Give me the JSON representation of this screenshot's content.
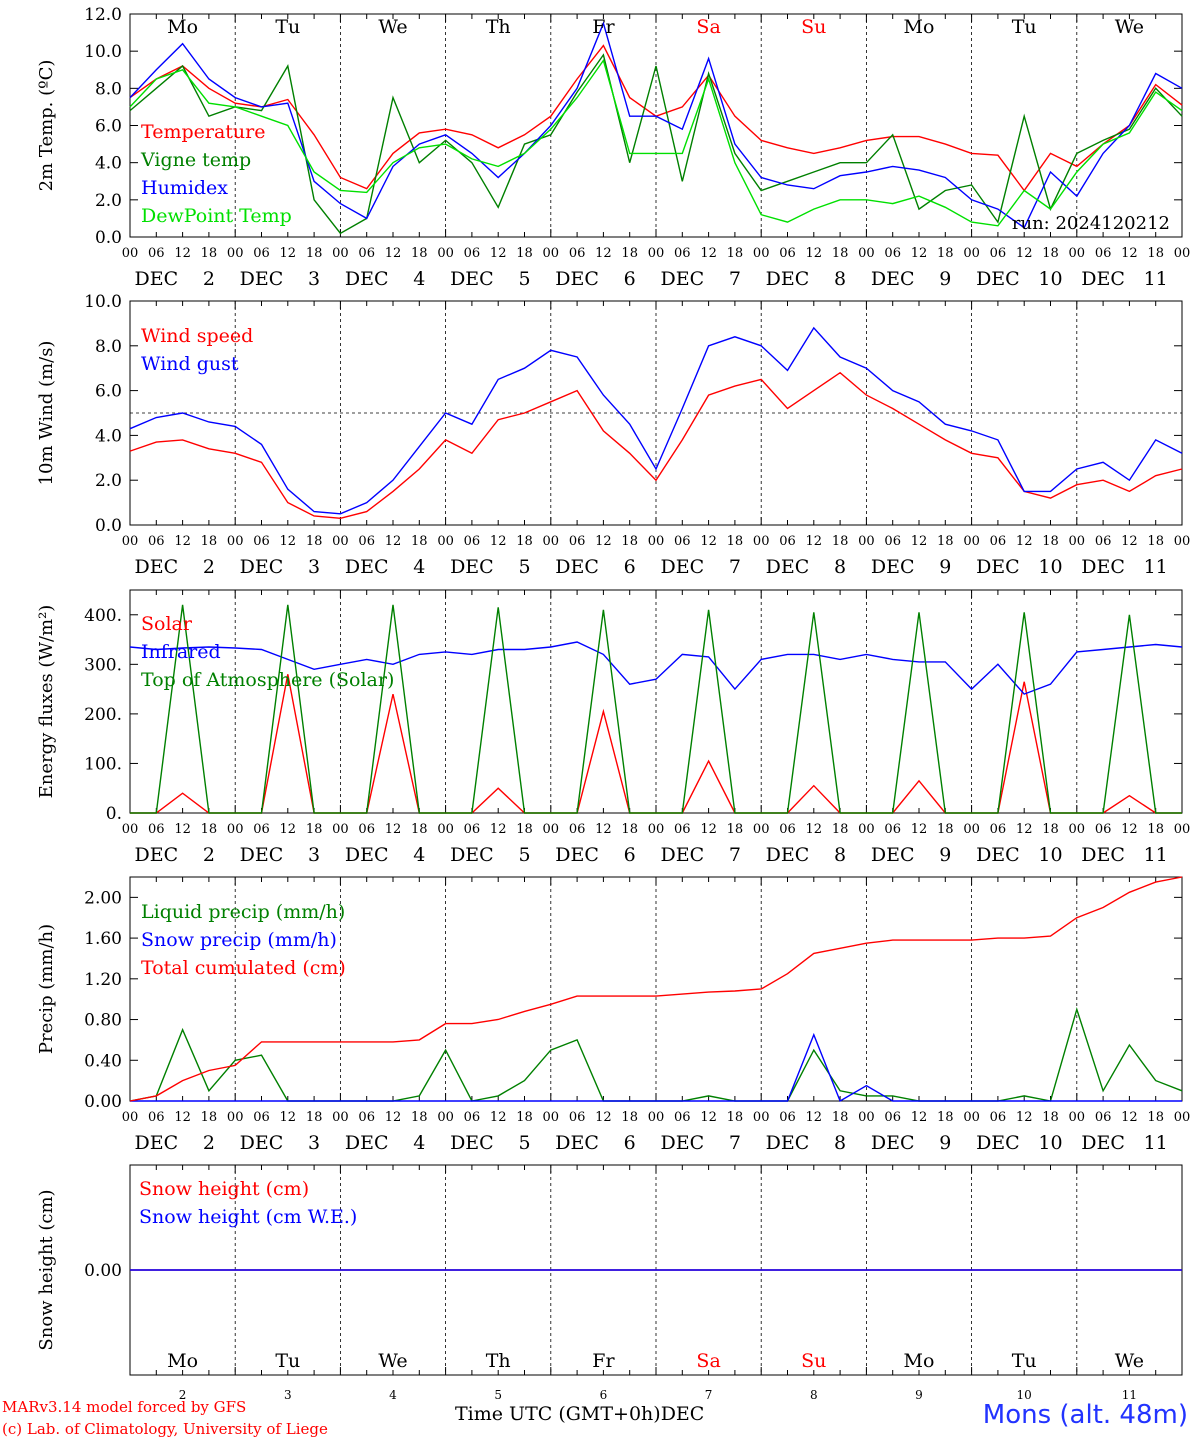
{
  "colors": {
    "red": "#ff0000",
    "green": "#008000",
    "blue": "#0000ff",
    "lightgreen": "#00e000",
    "black": "#000000"
  },
  "footer": {
    "model": "MARv3.14 model forced by GFS",
    "lab": "(c) Lab. of Climatology, University of Liege",
    "time_label": "Time UTC (GMT+0h)",
    "month": "DEC",
    "station": "Mons (alt. 48m)"
  },
  "hour_ticks": [
    "00",
    "06",
    "12",
    "18"
  ],
  "day_ticks": [
    "2",
    "3",
    "4",
    "5",
    "6",
    "7",
    "8",
    "9",
    "10",
    "11"
  ],
  "day_names": [
    {
      "label": "Mo",
      "weekend": false
    },
    {
      "label": "Tu",
      "weekend": false
    },
    {
      "label": "We",
      "weekend": false
    },
    {
      "label": "Th",
      "weekend": false
    },
    {
      "label": "Fr",
      "weekend": false
    },
    {
      "label": "Sa",
      "weekend": true
    },
    {
      "label": "Su",
      "weekend": true
    },
    {
      "label": "Mo",
      "weekend": false
    },
    {
      "label": "Tu",
      "weekend": false
    },
    {
      "label": "We",
      "weekend": false
    }
  ],
  "chart_data": [
    {
      "type": "line",
      "ylabel": "2m Temp. (ºC)",
      "ylim": [
        0,
        12
      ],
      "yticks": [
        "0.0",
        "2.0",
        "4.0",
        "6.0",
        "8.0",
        "10.0",
        "12.0"
      ],
      "annotation": "run: 2024120212",
      "x_hours": [
        0,
        6,
        12,
        18,
        24,
        30,
        36,
        42,
        48,
        54,
        60,
        66,
        72,
        78,
        84,
        90,
        96,
        102,
        108,
        114,
        120,
        126,
        132,
        138,
        144,
        150,
        156,
        162,
        168,
        174,
        180,
        186,
        192,
        198,
        204,
        210,
        216,
        222,
        228,
        234,
        240
      ],
      "series": [
        {
          "name": "Temperature",
          "color": "red",
          "values": [
            7.5,
            8.5,
            9.2,
            8.0,
            7.2,
            7.0,
            7.4,
            5.5,
            3.2,
            2.6,
            4.5,
            5.6,
            5.8,
            5.5,
            4.8,
            5.5,
            6.5,
            8.5,
            10.3,
            7.5,
            6.5,
            7.0,
            8.7,
            6.5,
            5.2,
            4.8,
            4.5,
            4.8,
            5.2,
            5.4,
            5.4,
            5.0,
            4.5,
            4.4,
            2.5,
            4.5,
            3.8,
            5.0,
            6.0,
            8.2,
            7.1
          ]
        },
        {
          "name": "Vigne temp",
          "color": "green",
          "values": [
            6.8,
            8.0,
            9.2,
            6.5,
            7.0,
            6.8,
            9.2,
            2.0,
            0.2,
            1.0,
            7.5,
            4.0,
            5.2,
            4.0,
            1.6,
            5.0,
            5.5,
            7.8,
            9.8,
            4.0,
            9.2,
            3.0,
            8.8,
            4.5,
            2.5,
            3.0,
            3.5,
            4.0,
            4.0,
            5.5,
            1.5,
            2.5,
            2.8,
            0.8,
            6.5,
            1.5,
            4.5,
            5.2,
            5.8,
            8.0,
            6.5
          ]
        },
        {
          "name": "Humidex",
          "color": "blue",
          "values": [
            7.5,
            9.0,
            10.4,
            8.5,
            7.5,
            7.0,
            7.2,
            3.0,
            1.8,
            1.0,
            3.8,
            5.0,
            5.5,
            4.5,
            3.2,
            4.5,
            6.0,
            8.0,
            11.5,
            6.5,
            6.5,
            5.8,
            9.6,
            5.0,
            3.2,
            2.8,
            2.6,
            3.3,
            3.5,
            3.8,
            3.6,
            3.2,
            2.0,
            1.5,
            0.5,
            3.5,
            2.2,
            4.5,
            6.0,
            8.8,
            8.0
          ]
        },
        {
          "name": "DewPoint Temp",
          "color": "lightgreen",
          "values": [
            7.0,
            8.5,
            9.0,
            7.2,
            7.0,
            6.5,
            6.0,
            3.5,
            2.5,
            2.4,
            4.0,
            4.8,
            5.0,
            4.2,
            3.8,
            4.5,
            5.8,
            7.5,
            9.5,
            4.5,
            4.5,
            4.5,
            8.5,
            4.0,
            1.2,
            0.8,
            1.5,
            2.0,
            2.0,
            1.8,
            2.2,
            1.6,
            0.8,
            0.6,
            2.5,
            1.5,
            3.5,
            5.0,
            5.6,
            7.8,
            6.8
          ]
        }
      ]
    },
    {
      "type": "line",
      "ylabel": "10m Wind (m/s)",
      "ylim": [
        0,
        10
      ],
      "yticks": [
        "0.0",
        "2.0",
        "4.0",
        "6.0",
        "8.0",
        "10.0"
      ],
      "reference_line": 5,
      "x_hours": [
        0,
        6,
        12,
        18,
        24,
        30,
        36,
        42,
        48,
        54,
        60,
        66,
        72,
        78,
        84,
        90,
        96,
        102,
        108,
        114,
        120,
        126,
        132,
        138,
        144,
        150,
        156,
        162,
        168,
        174,
        180,
        186,
        192,
        198,
        204,
        210,
        216,
        222,
        228,
        234,
        240
      ],
      "series": [
        {
          "name": "Wind speed",
          "color": "red",
          "values": [
            3.3,
            3.7,
            3.8,
            3.4,
            3.2,
            2.8,
            1.0,
            0.4,
            0.3,
            0.6,
            1.5,
            2.5,
            3.8,
            3.2,
            4.7,
            5.0,
            5.5,
            6.0,
            4.2,
            3.2,
            2.0,
            3.8,
            5.8,
            6.2,
            6.5,
            5.2,
            6.0,
            6.8,
            5.8,
            5.2,
            4.5,
            3.8,
            3.2,
            3.0,
            1.5,
            1.2,
            1.8,
            2.0,
            1.5,
            2.2,
            2.5
          ]
        },
        {
          "name": "Wind gust",
          "color": "blue",
          "values": [
            4.3,
            4.8,
            5.0,
            4.6,
            4.4,
            3.6,
            1.6,
            0.6,
            0.5,
            1.0,
            2.0,
            3.5,
            5.0,
            4.5,
            6.5,
            7.0,
            7.8,
            7.5,
            5.8,
            4.5,
            2.5,
            5.2,
            8.0,
            8.4,
            8.0,
            6.9,
            8.8,
            7.5,
            7.0,
            6.0,
            5.5,
            4.5,
            4.2,
            3.8,
            1.5,
            1.5,
            2.5,
            2.8,
            2.0,
            3.8,
            3.2
          ]
        }
      ]
    },
    {
      "type": "line",
      "ylabel": "Energy fluxes (W/m²)",
      "ylim": [
        0,
        450
      ],
      "yticks": [
        "0.",
        "100.",
        "200.",
        "300.",
        "400."
      ],
      "x_hours": [
        0,
        6,
        12,
        18,
        24,
        30,
        36,
        42,
        48,
        54,
        60,
        66,
        72,
        78,
        84,
        90,
        96,
        102,
        108,
        114,
        120,
        126,
        132,
        138,
        144,
        150,
        156,
        162,
        168,
        174,
        180,
        186,
        192,
        198,
        204,
        210,
        216,
        222,
        228,
        234,
        240
      ],
      "series": [
        {
          "name": "Solar",
          "color": "red",
          "values": [
            0,
            0,
            40,
            0,
            0,
            0,
            280,
            0,
            0,
            0,
            240,
            0,
            0,
            0,
            50,
            0,
            0,
            0,
            205,
            0,
            0,
            0,
            105,
            0,
            0,
            0,
            55,
            0,
            0,
            0,
            65,
            0,
            0,
            0,
            265,
            0,
            0,
            0,
            35,
            0,
            0
          ]
        },
        {
          "name": "Infrared",
          "color": "blue",
          "values": [
            335,
            330,
            333,
            335,
            333,
            330,
            310,
            290,
            300,
            310,
            300,
            320,
            325,
            320,
            330,
            330,
            335,
            345,
            320,
            260,
            270,
            320,
            315,
            250,
            310,
            320,
            320,
            310,
            320,
            310,
            305,
            305,
            250,
            300,
            240,
            260,
            325,
            330,
            335,
            340,
            335
          ]
        },
        {
          "name": "Top of Atmosphere (Solar)",
          "color": "green",
          "values": [
            0,
            0,
            420,
            0,
            0,
            0,
            420,
            0,
            0,
            0,
            420,
            0,
            0,
            0,
            415,
            0,
            0,
            0,
            410,
            0,
            0,
            0,
            410,
            0,
            0,
            0,
            405,
            0,
            0,
            0,
            405,
            0,
            0,
            0,
            405,
            0,
            0,
            0,
            400,
            0,
            0
          ]
        }
      ]
    },
    {
      "type": "line",
      "ylabel": "Precip (mm/h)",
      "ylim": [
        0,
        2.2
      ],
      "yticks": [
        "0.00",
        "0.40",
        "0.80",
        "1.20",
        "1.60",
        "2.00"
      ],
      "x_hours": [
        0,
        6,
        12,
        18,
        24,
        30,
        36,
        42,
        48,
        54,
        60,
        66,
        72,
        78,
        84,
        90,
        96,
        102,
        108,
        114,
        120,
        126,
        132,
        138,
        144,
        150,
        156,
        162,
        168,
        174,
        180,
        186,
        192,
        198,
        204,
        210,
        216,
        222,
        228,
        234,
        240
      ],
      "series": [
        {
          "name": "Liquid precip (mm/h)",
          "color": "green",
          "values": [
            0,
            0.05,
            0.7,
            0.1,
            0.4,
            0.45,
            0,
            0,
            0,
            0,
            0,
            0.05,
            0.5,
            0,
            0.05,
            0.2,
            0.5,
            0.6,
            0,
            0,
            0,
            0,
            0.05,
            0,
            0,
            0,
            0.5,
            0.1,
            0.05,
            0.05,
            0,
            0,
            0,
            0,
            0.05,
            0,
            0.9,
            0.1,
            0.55,
            0.2,
            0.1
          ]
        },
        {
          "name": "Snow precip (mm/h)",
          "color": "blue",
          "values": [
            0,
            0,
            0,
            0,
            0,
            0,
            0,
            0,
            0,
            0,
            0,
            0,
            0,
            0,
            0,
            0,
            0,
            0,
            0,
            0,
            0,
            0,
            0,
            0,
            0,
            0,
            0.65,
            0,
            0.15,
            0,
            0,
            0,
            0,
            0,
            0,
            0,
            0,
            0,
            0,
            0,
            0
          ]
        },
        {
          "name": "Total cumulated (cm)",
          "color": "red",
          "values": [
            0,
            0.05,
            0.2,
            0.3,
            0.35,
            0.58,
            0.58,
            0.58,
            0.58,
            0.58,
            0.58,
            0.6,
            0.76,
            0.76,
            0.8,
            0.88,
            0.95,
            1.03,
            1.03,
            1.03,
            1.03,
            1.05,
            1.07,
            1.08,
            1.1,
            1.25,
            1.45,
            1.5,
            1.55,
            1.58,
            1.58,
            1.58,
            1.58,
            1.6,
            1.6,
            1.62,
            1.8,
            1.9,
            2.05,
            2.15,
            2.2
          ]
        }
      ]
    },
    {
      "type": "line",
      "ylabel": "Snow height (cm)",
      "ylim": [
        -1,
        1
      ],
      "yticks": [
        "0.00"
      ],
      "x_hours": [
        0,
        240
      ],
      "series": [
        {
          "name": "Snow height (cm)",
          "color": "red",
          "values": [
            0,
            0
          ]
        },
        {
          "name": "Snow height (cm W.E.)",
          "color": "blue",
          "values": [
            0,
            0
          ]
        }
      ]
    }
  ]
}
